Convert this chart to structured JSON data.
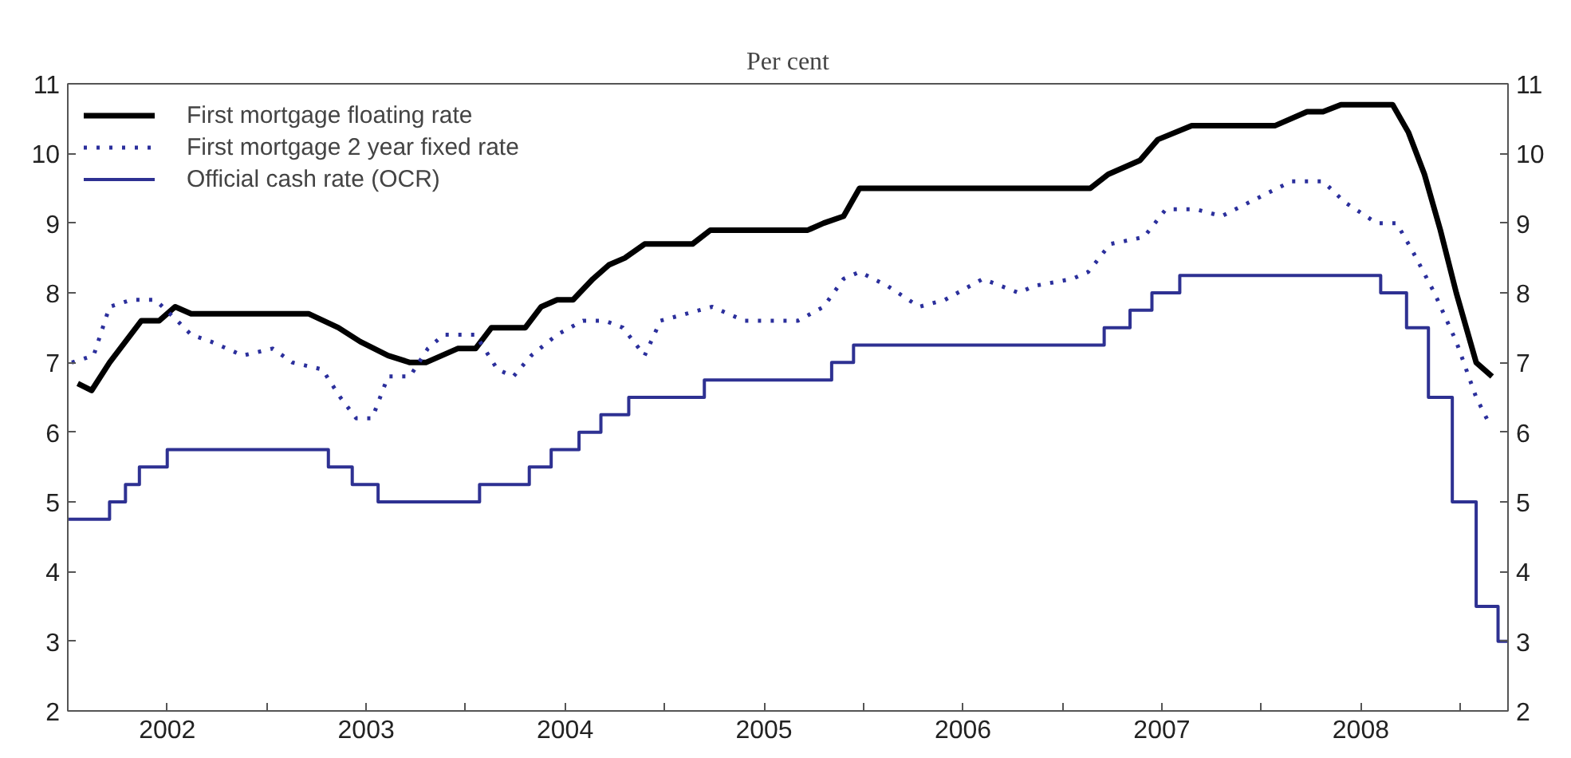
{
  "chart_data": {
    "type": "line",
    "subtitle": "Per cent",
    "xlim": [
      2002,
      2009.24
    ],
    "ylim": [
      2,
      11
    ],
    "y2lim": [
      2,
      11
    ],
    "xticks": [
      {
        "value": 2002.5,
        "label": "2002"
      },
      {
        "value": 2003.5,
        "label": "2003"
      },
      {
        "value": 2004.5,
        "label": "2004"
      },
      {
        "value": 2005.5,
        "label": "2005"
      },
      {
        "value": 2006.5,
        "label": "2006"
      },
      {
        "value": 2007.5,
        "label": "2007"
      },
      {
        "value": 2008.5,
        "label": "2008"
      },
      {
        "value": 2003,
        "label": null
      },
      {
        "value": 2004,
        "label": null
      },
      {
        "value": 2005,
        "label": null
      },
      {
        "value": 2006,
        "label": null
      },
      {
        "value": 2007,
        "label": null
      },
      {
        "value": 2008,
        "label": null
      },
      {
        "value": 2009,
        "label": null
      }
    ],
    "yticks": [
      2,
      3,
      4,
      5,
      6,
      7,
      8,
      9,
      10,
      11
    ],
    "y2ticks": [
      2,
      3,
      4,
      5,
      6,
      7,
      8,
      9,
      10,
      11
    ],
    "grid": false,
    "legend": "top left",
    "marker": "none",
    "series": [
      {
        "name": "First mortgage floating rate",
        "color": "#000000",
        "line_style": "solid",
        "x": [
          2002.05,
          2002.12,
          2002.21,
          2002.37,
          2002.46,
          2002.54,
          2002.62,
          2003.21,
          2003.36,
          2003.47,
          2003.61,
          2003.72,
          2003.8,
          2003.88,
          2003.96,
          2004.05,
          2004.13,
          2004.3,
          2004.38,
          2004.46,
          2004.54,
          2004.64,
          2004.72,
          2004.8,
          2004.9,
          2005.14,
          2005.23,
          2005.72,
          2005.8,
          2005.9,
          2005.98,
          2007.14,
          2007.23,
          2007.39,
          2007.48,
          2007.65,
          2008.07,
          2008.23,
          2008.31,
          2008.4,
          2008.66,
          2008.74,
          2008.82,
          2008.9,
          2008.98,
          2009.08,
          2009.16
        ],
        "values": [
          6.7,
          6.6,
          7.0,
          7.6,
          7.6,
          7.8,
          7.7,
          7.7,
          7.5,
          7.3,
          7.1,
          7.0,
          7.0,
          7.1,
          7.2,
          7.2,
          7.5,
          7.5,
          7.8,
          7.9,
          7.9,
          8.2,
          8.4,
          8.5,
          8.7,
          8.7,
          8.9,
          8.9,
          9.0,
          9.1,
          9.5,
          9.5,
          9.7,
          9.9,
          10.2,
          10.4,
          10.4,
          10.6,
          10.6,
          10.7,
          10.7,
          10.3,
          9.7,
          8.9,
          8.0,
          7.0,
          6.8
        ]
      },
      {
        "name": "First mortgage 2 year fixed rate",
        "color": "#2b2f9c",
        "line_style": "dotted",
        "x": [
          2002.02,
          2002.13,
          2002.21,
          2002.32,
          2002.44,
          2002.55,
          2002.62,
          2002.72,
          2002.88,
          2003.03,
          2003.13,
          2003.28,
          2003.37,
          2003.45,
          2003.53,
          2003.61,
          2003.72,
          2003.81,
          2003.89,
          2004.05,
          2004.16,
          2004.24,
          2004.33,
          2004.46,
          2004.59,
          2004.7,
          2004.79,
          2004.9,
          2004.98,
          2005.11,
          2005.24,
          2005.4,
          2005.51,
          2005.67,
          2005.8,
          2005.9,
          2005.98,
          2006.12,
          2006.28,
          2006.41,
          2006.6,
          2006.78,
          2006.86,
          2007.05,
          2007.13,
          2007.24,
          2007.41,
          2007.52,
          2007.67,
          2007.8,
          2007.94,
          2008.15,
          2008.31,
          2008.42,
          2008.58,
          2008.68,
          2008.76,
          2008.87,
          2008.98,
          2009.08,
          2009.15
        ],
        "values": [
          7.0,
          7.1,
          7.8,
          7.9,
          7.9,
          7.6,
          7.4,
          7.3,
          7.1,
          7.2,
          7.0,
          6.9,
          6.5,
          6.2,
          6.2,
          6.8,
          6.8,
          7.2,
          7.4,
          7.4,
          6.9,
          6.8,
          7.1,
          7.4,
          7.6,
          7.6,
          7.5,
          7.1,
          7.6,
          7.7,
          7.8,
          7.6,
          7.6,
          7.6,
          7.8,
          8.2,
          8.3,
          8.1,
          7.8,
          7.9,
          8.2,
          8.0,
          8.1,
          8.2,
          8.3,
          8.7,
          8.8,
          9.2,
          9.2,
          9.1,
          9.3,
          9.6,
          9.6,
          9.3,
          9.0,
          9.0,
          8.6,
          8.0,
          7.3,
          6.5,
          6.1
        ]
      },
      {
        "name": "Official cash rate (OCR)",
        "color": "#2e3192",
        "line_style": "solid",
        "type": "step",
        "x": [
          2002.0,
          2002.21,
          2002.29,
          2002.36,
          2002.5,
          2003.31,
          2003.43,
          2003.56,
          2004.07,
          2004.32,
          2004.43,
          2004.57,
          2004.68,
          2004.82,
          2005.2,
          2005.84,
          2005.95,
          2007.21,
          2007.34,
          2007.45,
          2007.59,
          2008.6,
          2008.73,
          2008.84,
          2008.96,
          2009.08,
          2009.19,
          2009.24
        ],
        "values": [
          4.75,
          5.0,
          5.25,
          5.5,
          5.75,
          5.5,
          5.25,
          5.0,
          5.25,
          5.5,
          5.75,
          6.0,
          6.25,
          6.5,
          6.75,
          7.0,
          7.25,
          7.5,
          7.75,
          8.0,
          8.25,
          8.0,
          7.5,
          6.5,
          5.0,
          3.5,
          3.0,
          3.0
        ]
      }
    ]
  }
}
